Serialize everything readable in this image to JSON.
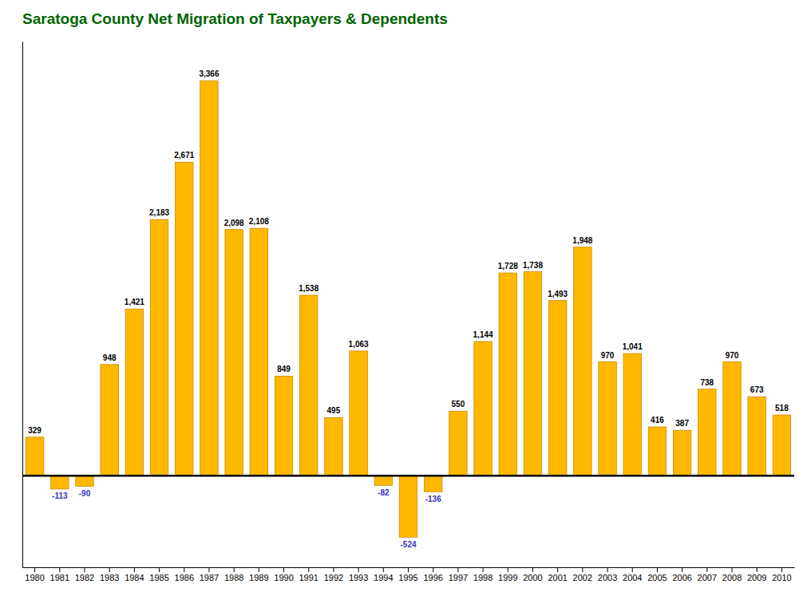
{
  "chart_data": {
    "type": "bar",
    "title": "Saratoga County Net Migration of Taxpayers & Dependents",
    "categories": [
      "1980",
      "1981",
      "1982",
      "1983",
      "1984",
      "1985",
      "1986",
      "1987",
      "1988",
      "1989",
      "1990",
      "1991",
      "1992",
      "1993",
      "1994",
      "1995",
      "1996",
      "1997",
      "1998",
      "1999",
      "2000",
      "2001",
      "2002",
      "2003",
      "2004",
      "2005",
      "2006",
      "2007",
      "2008",
      "2009",
      "2010"
    ],
    "values": [
      329,
      -113,
      -90,
      948,
      1421,
      2183,
      2671,
      3366,
      2098,
      2108,
      849,
      1538,
      495,
      1063,
      -82,
      -524,
      -136,
      550,
      1144,
      1728,
      1738,
      1493,
      1948,
      970,
      1041,
      416,
      387,
      738,
      970,
      673,
      518
    ],
    "value_labels": [
      "329",
      "-113",
      "-90",
      "948",
      "1,421",
      "2,183",
      "2,671",
      "3,366",
      "2,098",
      "2,108",
      "849",
      "1,538",
      "495",
      "1,063",
      "-82",
      "-524",
      "-136",
      "550",
      "1,144",
      "1,728",
      "1,738",
      "1,493",
      "1,948",
      "970",
      "1,041",
      "416",
      "387",
      "738",
      "970",
      "673",
      "518"
    ],
    "color": "#FFB800",
    "ylim": [
      -780,
      3700
    ],
    "data_labels": true,
    "tick_labels": "x",
    "grid": false
  }
}
